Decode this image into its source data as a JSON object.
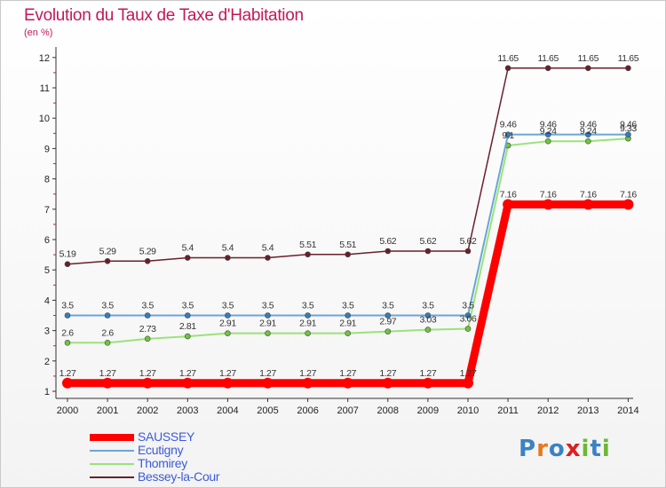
{
  "title": "Evolution du Taux de Taxe d'Habitation",
  "unit": "(en %)",
  "logo": {
    "text": "Proxiti",
    "letters": [
      "P",
      "r",
      "o",
      "x",
      "i",
      "t",
      "i"
    ],
    "colors": [
      "#3b82c4",
      "#e8781e",
      "#3b82c4",
      "#d92121",
      "#6cb832",
      "#3b82c4",
      "#6cb832"
    ]
  },
  "chart_data": {
    "type": "line",
    "x": [
      "2000",
      "2001",
      "2002",
      "2003",
      "2004",
      "2005",
      "2006",
      "2007",
      "2008",
      "2009",
      "2010",
      "2011",
      "2012",
      "2013",
      "2014"
    ],
    "y_ticks": [
      "1",
      "2",
      "3",
      "4",
      "5",
      "6",
      "7",
      "8",
      "9",
      "10",
      "11",
      "12"
    ],
    "ylim": [
      1,
      12
    ],
    "grid": false,
    "legend_position": "bottom-left",
    "series": [
      {
        "name": "SAUSSEY",
        "color": "#ff0000",
        "marker": "#ff0000",
        "width": 9,
        "values": [
          1.27,
          1.27,
          1.27,
          1.27,
          1.27,
          1.27,
          1.27,
          1.27,
          1.27,
          1.27,
          1.27,
          7.16,
          7.16,
          7.16,
          7.16
        ],
        "labels": [
          "1.27",
          "1.27",
          "1.27",
          "1.27",
          "1.27",
          "1.27",
          "1.27",
          "1.27",
          "1.27",
          "1.27",
          "1.27",
          "7.16",
          "7.16",
          "7.16",
          "7.16"
        ]
      },
      {
        "name": "Ecutigny",
        "color": "#6aa6d6",
        "marker": "#2f7fc1",
        "width": 2,
        "values": [
          3.5,
          3.5,
          3.5,
          3.5,
          3.5,
          3.5,
          3.5,
          3.5,
          3.5,
          3.5,
          3.5,
          9.46,
          9.46,
          9.46,
          9.46
        ],
        "labels": [
          "3.5",
          "3.5",
          "3.5",
          "3.5",
          "3.5",
          "3.5",
          "3.5",
          "3.5",
          "3.5",
          "3.5",
          "3.5",
          "9.46",
          "9.46",
          "9.46",
          "9.46"
        ]
      },
      {
        "name": "Thomirey",
        "color": "#9be27a",
        "marker": "#6cc63a",
        "width": 2,
        "values": [
          2.6,
          2.6,
          2.73,
          2.81,
          2.91,
          2.91,
          2.91,
          2.91,
          2.97,
          3.03,
          3.06,
          9.1,
          9.24,
          9.24,
          9.33
        ],
        "labels": [
          "2.6",
          "2.6",
          "2.73",
          "2.81",
          "2.91",
          "2.91",
          "2.91",
          "2.91",
          "2.97",
          "3.03",
          "3.06",
          "9.1",
          "9.24",
          "9.24",
          "9.33"
        ]
      },
      {
        "name": "Bessey-la-Cour",
        "color": "#6b1f2a",
        "marker": "#6b1f2a",
        "width": 1.5,
        "values": [
          5.19,
          5.29,
          5.29,
          5.4,
          5.4,
          5.4,
          5.51,
          5.51,
          5.62,
          5.62,
          5.62,
          11.65,
          11.65,
          11.65,
          11.65
        ],
        "labels": [
          "5.19",
          "5.29",
          "5.29",
          "5.4",
          "5.4",
          "5.4",
          "5.51",
          "5.51",
          "5.62",
          "5.62",
          "5.62",
          "11.65",
          "11.65",
          "11.65",
          "11.65"
        ]
      }
    ]
  }
}
